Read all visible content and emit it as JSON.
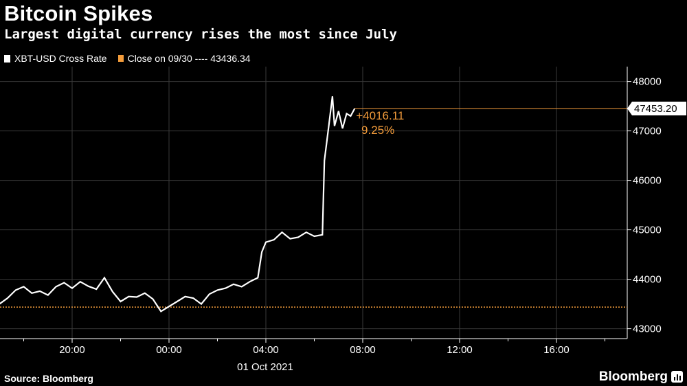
{
  "title": "Bitcoin Spikes",
  "subtitle": "Largest digital currency rises the most since July",
  "legend": {
    "series_label": "XBT-USD Cross Rate",
    "reference_label": "Close on 09/30 ---- 43436.34"
  },
  "annotation": {
    "change": "+4016.11",
    "pct": "9.25%",
    "last_label": "47453.20"
  },
  "footer": {
    "source": "Source: Bloomberg",
    "brand": "Bloomberg"
  },
  "colors": {
    "line": "#ffffff",
    "reference": "#f39c3b",
    "grid": "#3a3a3a",
    "background": "#000000"
  },
  "chart_data": {
    "type": "line",
    "x_tick_labels": [
      "20:00",
      "00:00",
      "04:00",
      "08:00",
      "12:00",
      "16:00"
    ],
    "x_date_label": "01 Oct 2021",
    "y_tick_labels": [
      "48000",
      "47000",
      "46000",
      "45000",
      "44000",
      "43000"
    ],
    "ylim": [
      42800,
      48300
    ],
    "reference_value": 43436.34,
    "last_value": 47453.2,
    "series": [
      {
        "name": "XBT-USD Cross Rate",
        "points": [
          [
            "2021-09-30 16:40",
            43450
          ],
          [
            "2021-09-30 17:00",
            43500
          ],
          [
            "2021-09-30 17:20",
            43620
          ],
          [
            "2021-09-30 17:40",
            43780
          ],
          [
            "2021-09-30 18:00",
            43850
          ],
          [
            "2021-09-30 18:20",
            43720
          ],
          [
            "2021-09-30 18:40",
            43760
          ],
          [
            "2021-09-30 19:00",
            43680
          ],
          [
            "2021-09-30 19:20",
            43850
          ],
          [
            "2021-09-30 19:40",
            43930
          ],
          [
            "2021-09-30 20:00",
            43820
          ],
          [
            "2021-09-30 20:20",
            43950
          ],
          [
            "2021-09-30 20:40",
            43860
          ],
          [
            "2021-09-30 21:00",
            43800
          ],
          [
            "2021-09-30 21:20",
            44030
          ],
          [
            "2021-09-30 21:40",
            43750
          ],
          [
            "2021-09-30 22:00",
            43550
          ],
          [
            "2021-09-30 22:20",
            43650
          ],
          [
            "2021-09-30 22:40",
            43640
          ],
          [
            "2021-09-30 23:00",
            43720
          ],
          [
            "2021-09-30 23:20",
            43600
          ],
          [
            "2021-09-30 23:40",
            43350
          ],
          [
            "2021-10-01 00:00",
            43450
          ],
          [
            "2021-10-01 00:20",
            43550
          ],
          [
            "2021-10-01 00:40",
            43650
          ],
          [
            "2021-10-01 01:00",
            43620
          ],
          [
            "2021-10-01 01:20",
            43500
          ],
          [
            "2021-10-01 01:40",
            43700
          ],
          [
            "2021-10-01 02:00",
            43780
          ],
          [
            "2021-10-01 02:20",
            43820
          ],
          [
            "2021-10-01 02:40",
            43900
          ],
          [
            "2021-10-01 03:00",
            43850
          ],
          [
            "2021-10-01 03:20",
            43950
          ],
          [
            "2021-10-01 03:40",
            44030
          ],
          [
            "2021-10-01 03:50",
            44550
          ],
          [
            "2021-10-01 04:00",
            44750
          ],
          [
            "2021-10-01 04:20",
            44800
          ],
          [
            "2021-10-01 04:40",
            44950
          ],
          [
            "2021-10-01 05:00",
            44820
          ],
          [
            "2021-10-01 05:20",
            44850
          ],
          [
            "2021-10-01 05:40",
            44950
          ],
          [
            "2021-10-01 06:00",
            44870
          ],
          [
            "2021-10-01 06:20",
            44900
          ],
          [
            "2021-10-01 06:25",
            46400
          ],
          [
            "2021-10-01 06:35",
            47050
          ],
          [
            "2021-10-01 06:45",
            47700
          ],
          [
            "2021-10-01 06:50",
            47100
          ],
          [
            "2021-10-01 07:00",
            47400
          ],
          [
            "2021-10-01 07:10",
            47050
          ],
          [
            "2021-10-01 07:20",
            47350
          ],
          [
            "2021-10-01 07:30",
            47300
          ],
          [
            "2021-10-01 07:40",
            47453.2
          ]
        ]
      }
    ]
  }
}
